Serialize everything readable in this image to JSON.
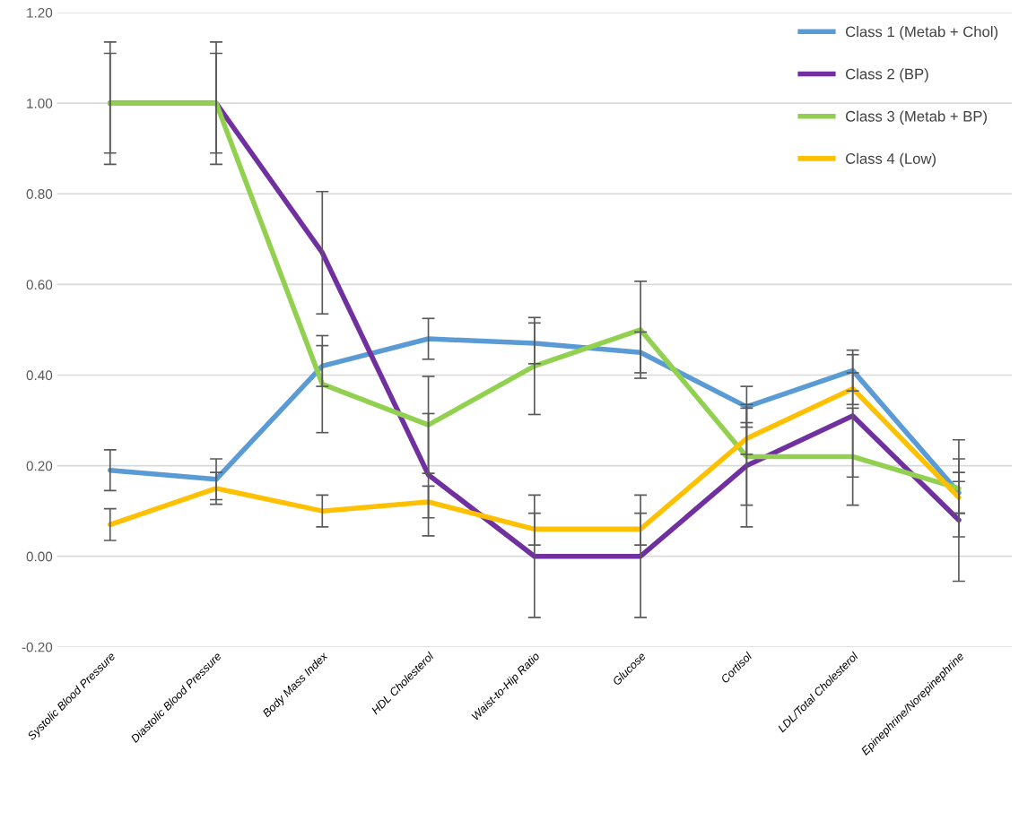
{
  "chart_data": {
    "type": "line",
    "categories": [
      "Systolic Blood Pressure",
      "Diastolic Blood Pressure",
      "Body Mass Index",
      "HDL Cholesterol",
      "Waist-to-Hip Ratio",
      "Glucose",
      "Cortisol",
      "LDL/Total Cholesterol",
      "Epinephrine/Norepinephrine"
    ],
    "series": [
      {
        "name": "Class 1 (Metab + Chol)",
        "color": "#5b9bd5",
        "values": [
          0.19,
          0.17,
          0.42,
          0.48,
          0.47,
          0.45,
          0.33,
          0.41,
          0.14
        ],
        "errors": [
          0.045,
          0.045,
          0.045,
          0.045,
          0.045,
          0.045,
          0.045,
          0.045,
          0.045
        ]
      },
      {
        "name": "Class 2 (BP)",
        "color": "#7030a0",
        "values": [
          1.0,
          1.0,
          0.67,
          0.18,
          0.0,
          0.0,
          0.2,
          0.31,
          0.08
        ],
        "errors": [
          0.11,
          0.11,
          0.135,
          0.135,
          0.135,
          0.135,
          0.135,
          0.135,
          0.135
        ]
      },
      {
        "name": "Class 3 (Metab + BP)",
        "color": "#92d050",
        "values": [
          1.0,
          1.0,
          0.38,
          0.29,
          0.42,
          0.5,
          0.22,
          0.22,
          0.15
        ],
        "errors": [
          0.135,
          0.135,
          0.107,
          0.107,
          0.107,
          0.107,
          0.107,
          0.107,
          0.107
        ]
      },
      {
        "name": "Class 4 (Low)",
        "color": "#ffc000",
        "values": [
          0.07,
          0.15,
          0.1,
          0.12,
          0.06,
          0.06,
          0.26,
          0.37,
          0.13
        ],
        "errors": [
          0.035,
          0.035,
          0.035,
          0.035,
          0.035,
          0.035,
          0.035,
          0.035,
          0.035
        ]
      }
    ],
    "ylim": [
      -0.2,
      1.2
    ],
    "yticks": [
      {
        "value": -0.2,
        "label": "-0.20"
      },
      {
        "value": 0,
        "label": "0.00"
      },
      {
        "value": 0.2,
        "label": "0.20"
      },
      {
        "value": 0.4,
        "label": "0.40"
      },
      {
        "value": 0.6,
        "label": "0.60"
      },
      {
        "value": 0.8,
        "label": "0.80"
      },
      {
        "value": 1.0,
        "label": "1.00"
      },
      {
        "value": 1.2,
        "label": "1.20"
      }
    ],
    "grid": "y",
    "legend": "top right",
    "marker": "none",
    "line_style": "solid"
  }
}
